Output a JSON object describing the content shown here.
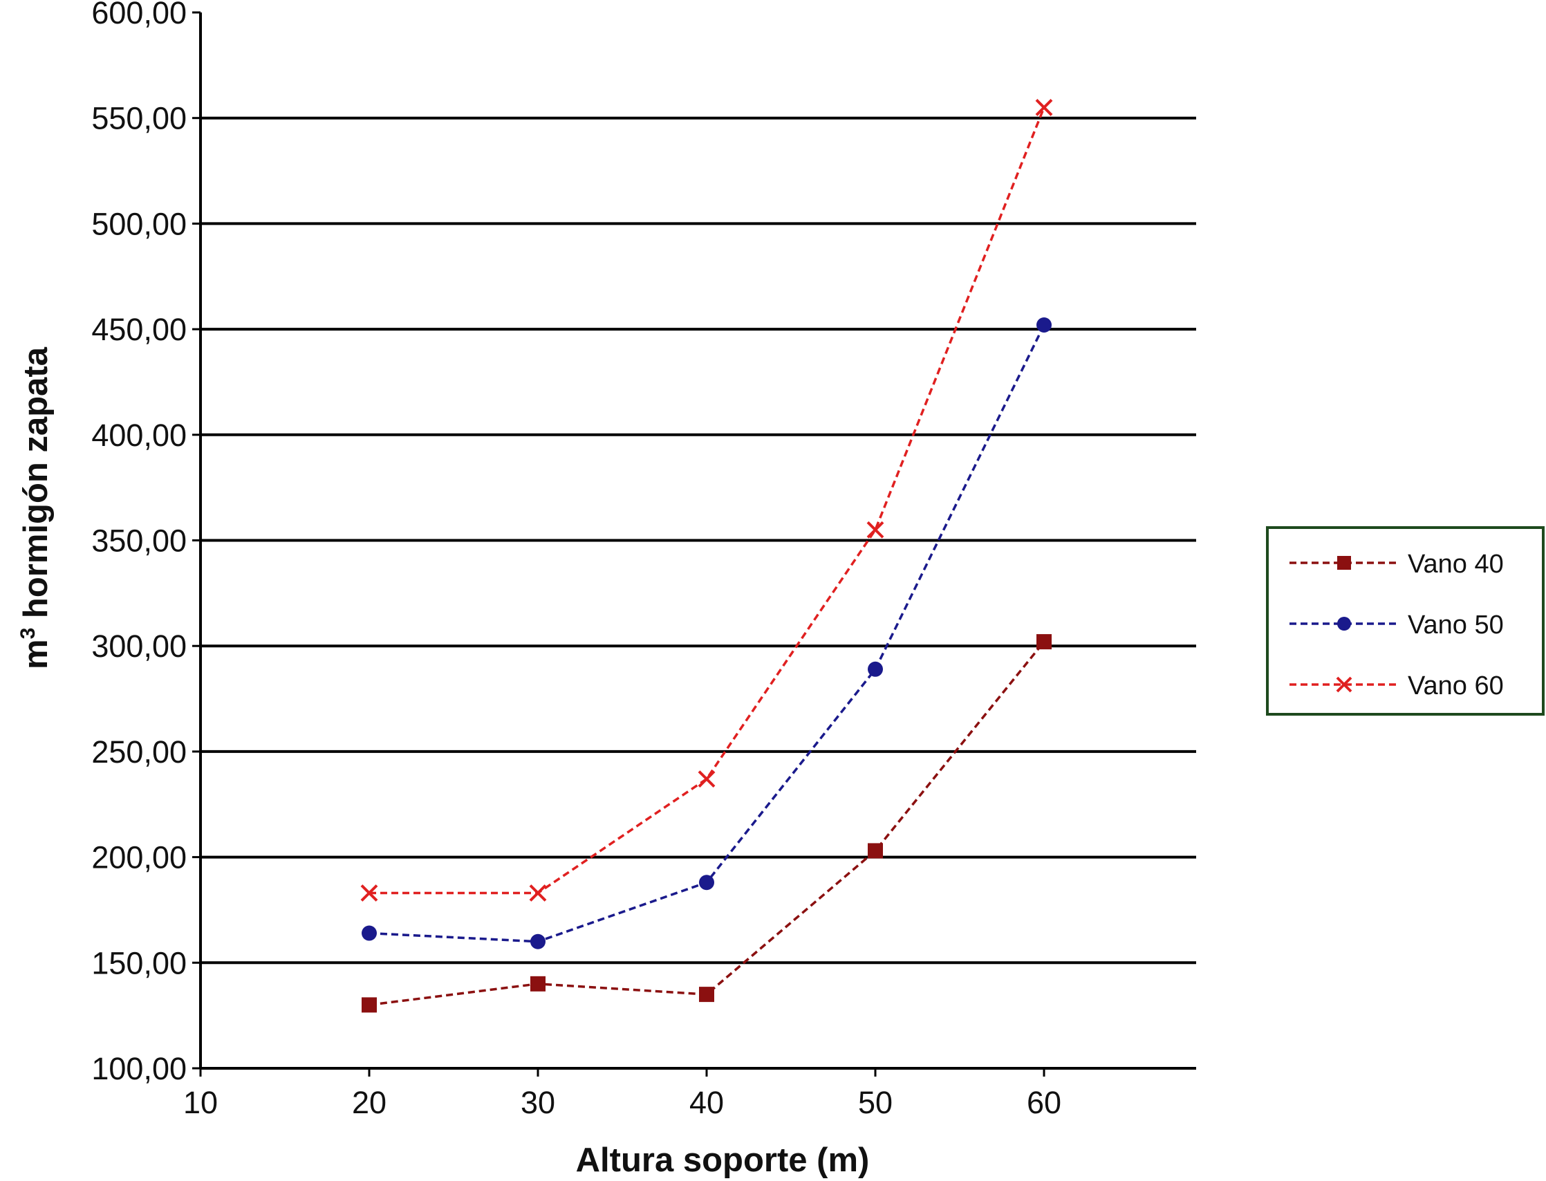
{
  "chart_data": {
    "type": "line",
    "xlabel": "Altura soporte (m)",
    "ylabel_main": "m",
    "ylabel_sup": "3",
    "ylabel_rest": " hormigón zapata",
    "xlim": [
      10,
      69
    ],
    "ylim": [
      100,
      600
    ],
    "x_ticks": [
      "10",
      "20",
      "30",
      "40",
      "50",
      "60"
    ],
    "y_ticks": [
      "100,00",
      "150,00",
      "200,00",
      "250,00",
      "300,00",
      "350,00",
      "400,00",
      "450,00",
      "500,00",
      "550,00",
      "600,00"
    ],
    "grid": true,
    "legend_position": "right",
    "x": [
      20,
      30,
      40,
      50,
      60
    ],
    "series": [
      {
        "name": "Vano 40",
        "values": [
          130,
          140,
          135,
          203,
          302
        ],
        "color": "#8B1010",
        "marker": "square"
      },
      {
        "name": "Vano 50",
        "values": [
          164,
          160,
          188,
          289,
          452
        ],
        "color": "#1A1A8C",
        "marker": "circle"
      },
      {
        "name": "Vano 60",
        "values": [
          183,
          183,
          237,
          355,
          555
        ],
        "color": "#E02020",
        "marker": "x"
      }
    ]
  }
}
